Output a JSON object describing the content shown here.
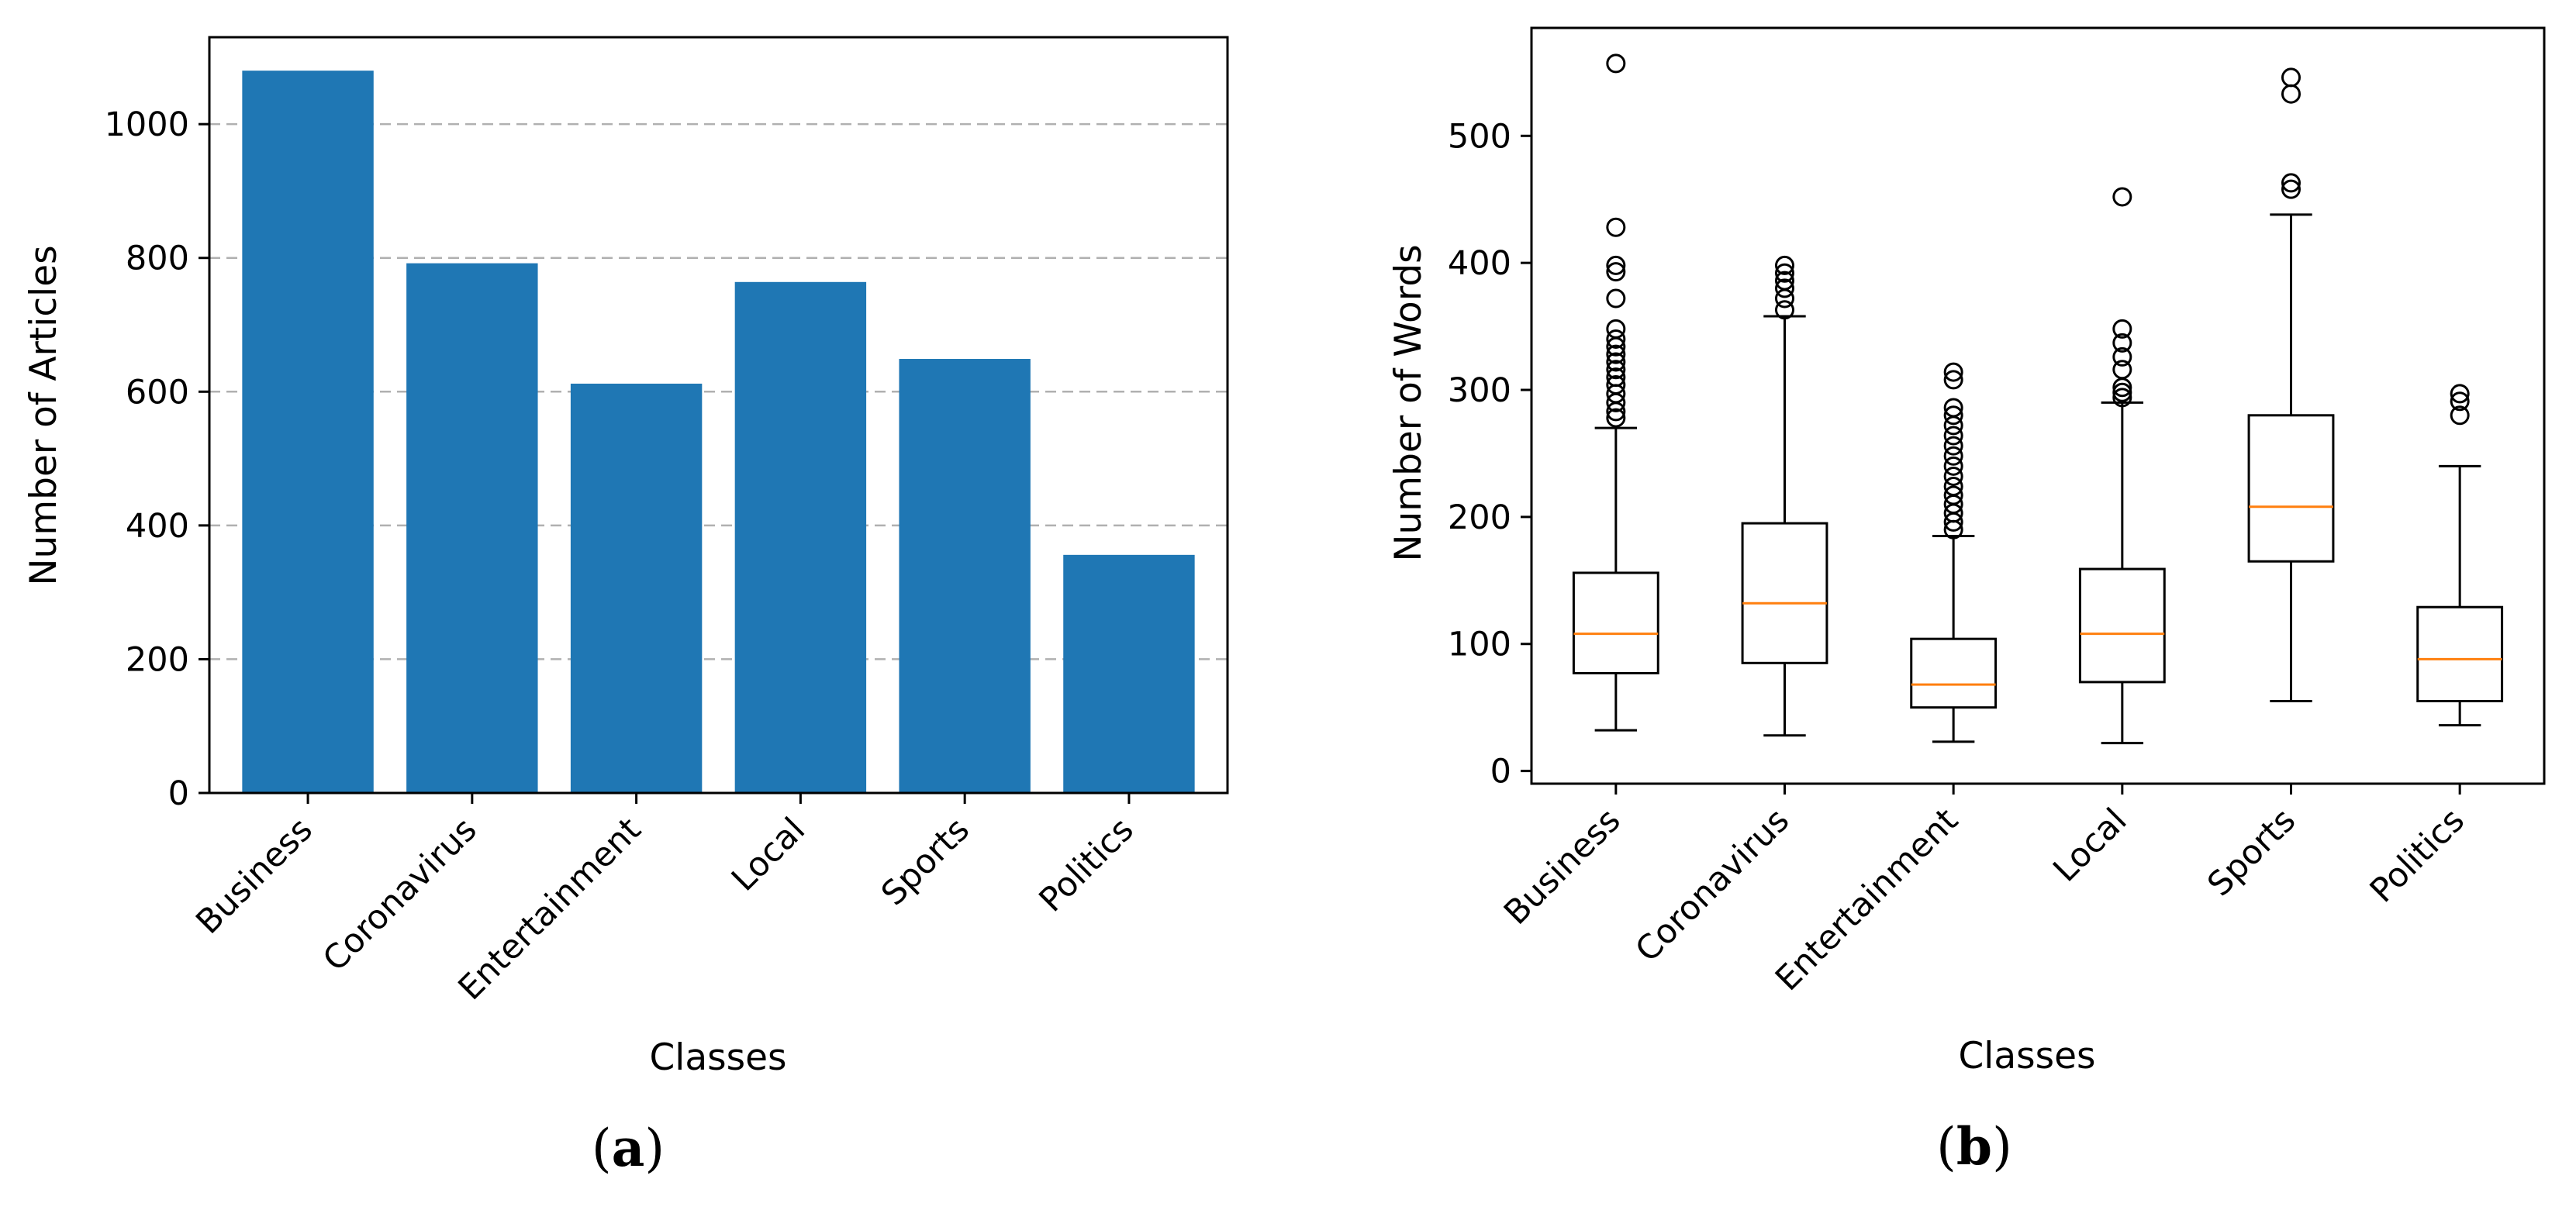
{
  "colors": {
    "bar": "#1f77b4",
    "median": "#ff7f0e",
    "grid": "#b0b0b0",
    "axis": "#000000"
  },
  "chart_data": [
    {
      "type": "bar",
      "panel_label": "a",
      "categories": [
        "Business",
        "Coronavirus",
        "Entertainment",
        "Local",
        "Sports",
        "Politics"
      ],
      "values": [
        1080,
        792,
        612,
        764,
        649,
        356
      ],
      "xlabel": "Classes",
      "ylabel": "Number of Articles",
      "ylim": [
        0,
        1130
      ],
      "yticks": [
        0,
        200,
        400,
        600,
        800,
        1000
      ],
      "grid": "y-dashed"
    },
    {
      "type": "boxplot",
      "panel_label": "b",
      "categories": [
        "Business",
        "Coronavirus",
        "Entertainment",
        "Local",
        "Sports",
        "Politics"
      ],
      "boxes": [
        {
          "whisker_low": 32,
          "q1": 77,
          "median": 108,
          "q3": 156,
          "whisker_high": 270,
          "outliers": [
            278,
            283,
            290,
            297,
            304,
            310,
            316,
            322,
            328,
            334,
            340,
            348,
            372,
            393,
            398,
            428,
            557
          ]
        },
        {
          "whisker_low": 28,
          "q1": 85,
          "median": 132,
          "q3": 195,
          "whisker_high": 358,
          "outliers": [
            363,
            372,
            380,
            386,
            392,
            398
          ]
        },
        {
          "whisker_low": 23,
          "q1": 50,
          "median": 68,
          "q3": 104,
          "whisker_high": 185,
          "outliers": [
            190,
            196,
            203,
            210,
            217,
            224,
            232,
            240,
            248,
            256,
            264,
            272,
            280,
            286,
            308,
            314
          ]
        },
        {
          "whisker_low": 22,
          "q1": 70,
          "median": 108,
          "q3": 159,
          "whisker_high": 290,
          "outliers": [
            294,
            298,
            302,
            316,
            326,
            337,
            348,
            452
          ]
        },
        {
          "whisker_low": 55,
          "q1": 165,
          "median": 208,
          "q3": 280,
          "whisker_high": 438,
          "outliers": [
            458,
            463,
            533,
            546
          ]
        },
        {
          "whisker_low": 36,
          "q1": 55,
          "median": 88,
          "q3": 129,
          "whisker_high": 240,
          "outliers": [
            280,
            291,
            297
          ]
        }
      ],
      "xlabel": "Classes",
      "ylabel": "Number of Words",
      "ylim": [
        -10,
        585
      ],
      "yticks": [
        0,
        100,
        200,
        300,
        400,
        500
      ]
    }
  ]
}
